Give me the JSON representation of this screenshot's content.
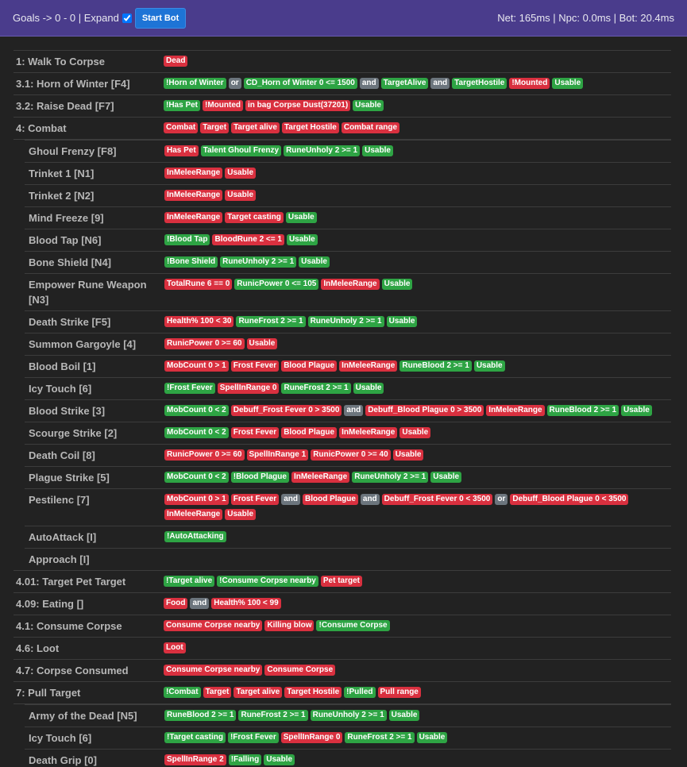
{
  "header": {
    "goals": "Goals -> 0 - 0 | Expand",
    "button": "Start Bot",
    "stats": "Net: 165ms | Npc: 0.0ms | Bot: 20.4ms"
  },
  "rows": [
    {
      "name": "1: Walk To Corpse",
      "badges": [
        [
          "Dead",
          "red"
        ]
      ]
    },
    {
      "name": "3.1: Horn of Winter [F4]",
      "badges": [
        [
          "!Horn of Winter",
          "green"
        ],
        [
          "or",
          "gray"
        ],
        [
          "CD_Horn of Winter 0 <= 1500",
          "green"
        ],
        [
          "and",
          "gray"
        ],
        [
          "TargetAlive",
          "green"
        ],
        [
          "and",
          "gray"
        ],
        [
          "TargetHostile",
          "green"
        ],
        [
          "!Mounted",
          "red"
        ],
        [
          "Usable",
          "green"
        ]
      ]
    },
    {
      "name": "3.2: Raise Dead [F7]",
      "badges": [
        [
          "!Has Pet",
          "green"
        ],
        [
          "!Mounted",
          "red"
        ],
        [
          "in bag Corpse Dust(37201)",
          "red"
        ],
        [
          "Usable",
          "green"
        ]
      ]
    },
    {
      "name": "4: Combat",
      "badges": [
        [
          "Combat",
          "red"
        ],
        [
          "Target",
          "red"
        ],
        [
          "Target alive",
          "red"
        ],
        [
          "Target Hostile",
          "red"
        ],
        [
          "Combat range",
          "red"
        ]
      ],
      "children": [
        {
          "name": "Ghoul Frenzy [F8]",
          "badges": [
            [
              "Has Pet",
              "red"
            ],
            [
              "Talent Ghoul Frenzy",
              "green"
            ],
            [
              "RuneUnholy 2 >= 1",
              "green"
            ],
            [
              "Usable",
              "green"
            ]
          ]
        },
        {
          "name": "Trinket 1 [N1]",
          "badges": [
            [
              "InMeleeRange",
              "red"
            ],
            [
              "Usable",
              "red"
            ]
          ]
        },
        {
          "name": "Trinket 2 [N2]",
          "badges": [
            [
              "InMeleeRange",
              "red"
            ],
            [
              "Usable",
              "red"
            ]
          ]
        },
        {
          "name": "Mind Freeze [9]",
          "badges": [
            [
              "InMeleeRange",
              "red"
            ],
            [
              "Target casting",
              "red"
            ],
            [
              "Usable",
              "green"
            ]
          ]
        },
        {
          "name": "Blood Tap [N6]",
          "badges": [
            [
              "!Blood Tap",
              "green"
            ],
            [
              "BloodRune 2 <= 1",
              "red"
            ],
            [
              "Usable",
              "green"
            ]
          ]
        },
        {
          "name": "Bone Shield [N4]",
          "badges": [
            [
              "!Bone Shield",
              "green"
            ],
            [
              "RuneUnholy 2 >= 1",
              "green"
            ],
            [
              "Usable",
              "green"
            ]
          ]
        },
        {
          "name": "Empower Rune Weapon [N3]",
          "badges": [
            [
              "TotalRune 6 == 0",
              "red"
            ],
            [
              "RunicPower 0 <= 105",
              "green"
            ],
            [
              "InMeleeRange",
              "red"
            ],
            [
              "Usable",
              "green"
            ]
          ]
        },
        {
          "name": "Death Strike [F5]",
          "badges": [
            [
              "Health% 100 < 30",
              "red"
            ],
            [
              "RuneFrost 2 >= 1",
              "green"
            ],
            [
              "RuneUnholy 2 >= 1",
              "green"
            ],
            [
              "Usable",
              "green"
            ]
          ]
        },
        {
          "name": "Summon Gargoyle [4]",
          "badges": [
            [
              "RunicPower 0 >= 60",
              "red"
            ],
            [
              "Usable",
              "red"
            ]
          ]
        },
        {
          "name": "Blood Boil [1]",
          "badges": [
            [
              "MobCount 0 > 1",
              "red"
            ],
            [
              "Frost Fever",
              "red"
            ],
            [
              "Blood Plague",
              "red"
            ],
            [
              "InMeleeRange",
              "red"
            ],
            [
              "RuneBlood 2 >= 1",
              "green"
            ],
            [
              "Usable",
              "green"
            ]
          ]
        },
        {
          "name": "Icy Touch [6]",
          "badges": [
            [
              "!Frost Fever",
              "green"
            ],
            [
              "SpellInRange 0",
              "red"
            ],
            [
              "RuneFrost 2 >= 1",
              "green"
            ],
            [
              "Usable",
              "green"
            ]
          ]
        },
        {
          "name": "Blood Strike [3]",
          "badges": [
            [
              "MobCount 0 < 2",
              "green"
            ],
            [
              "Debuff_Frost Fever 0 > 3500",
              "red"
            ],
            [
              "and",
              "gray"
            ],
            [
              "Debuff_Blood Plague 0 > 3500",
              "red"
            ],
            [
              "InMeleeRange",
              "red"
            ],
            [
              "RuneBlood 2 >= 1",
              "green"
            ],
            [
              "Usable",
              "green"
            ]
          ]
        },
        {
          "name": "Scourge Strike [2]",
          "badges": [
            [
              "MobCount 0 < 2",
              "green"
            ],
            [
              "Frost Fever",
              "red"
            ],
            [
              "Blood Plague",
              "red"
            ],
            [
              "InMeleeRange",
              "red"
            ],
            [
              "Usable",
              "red"
            ]
          ]
        },
        {
          "name": "Death Coil [8]",
          "badges": [
            [
              "RunicPower 0 >= 60",
              "red"
            ],
            [
              "SpellInRange 1",
              "red"
            ],
            [
              "RunicPower 0 >= 40",
              "red"
            ],
            [
              "Usable",
              "red"
            ]
          ]
        },
        {
          "name": "Plague Strike [5]",
          "badges": [
            [
              "MobCount 0 < 2",
              "green"
            ],
            [
              "!Blood Plague",
              "green"
            ],
            [
              "InMeleeRange",
              "red"
            ],
            [
              "RuneUnholy 2 >= 1",
              "green"
            ],
            [
              "Usable",
              "green"
            ]
          ]
        },
        {
          "name": "Pestilenc [7]",
          "badges": [
            [
              "MobCount 0 > 1",
              "red"
            ],
            [
              "Frost Fever",
              "red"
            ],
            [
              "and",
              "gray"
            ],
            [
              "Blood Plague",
              "red"
            ],
            [
              "and",
              "gray"
            ],
            [
              "Debuff_Frost Fever 0 < 3500",
              "red"
            ],
            [
              "or",
              "gray"
            ],
            [
              "Debuff_Blood Plague 0 < 3500",
              "red"
            ],
            [
              "InMeleeRange",
              "red"
            ],
            [
              "Usable",
              "red"
            ]
          ]
        },
        {
          "name": "AutoAttack [I]",
          "badges": [
            [
              "!AutoAttacking",
              "green"
            ]
          ]
        },
        {
          "name": "Approach [I]",
          "badges": []
        }
      ]
    },
    {
      "name": "4.01: Target Pet Target",
      "badges": [
        [
          "!Target alive",
          "green"
        ],
        [
          "!Consume Corpse nearby",
          "green"
        ],
        [
          "Pet target",
          "red"
        ]
      ]
    },
    {
      "name": "4.09: Eating []",
      "badges": [
        [
          "Food",
          "red"
        ],
        [
          "and",
          "gray"
        ],
        [
          "Health% 100 < 99",
          "red"
        ]
      ]
    },
    {
      "name": "4.1: Consume Corpse",
      "badges": [
        [
          "Consume Corpse nearby",
          "red"
        ],
        [
          "Killing blow",
          "red"
        ],
        [
          "!Consume Corpse",
          "green"
        ]
      ]
    },
    {
      "name": "4.6: Loot",
      "badges": [
        [
          "Loot",
          "red"
        ]
      ]
    },
    {
      "name": "4.7: Corpse Consumed",
      "badges": [
        [
          "Consume Corpse nearby",
          "red"
        ],
        [
          "Consume Corpse",
          "red"
        ]
      ]
    },
    {
      "name": "7: Pull Target",
      "badges": [
        [
          "!Combat",
          "green"
        ],
        [
          "Target",
          "red"
        ],
        [
          "Target alive",
          "red"
        ],
        [
          "Target Hostile",
          "red"
        ],
        [
          "!Pulled",
          "green"
        ],
        [
          "Pull range",
          "red"
        ]
      ],
      "children": [
        {
          "name": "Army of the Dead [N5]",
          "badges": [
            [
              "RuneBlood 2 >= 1",
              "green"
            ],
            [
              "RuneFrost 2 >= 1",
              "green"
            ],
            [
              "RuneUnholy 2 >= 1",
              "green"
            ],
            [
              "Usable",
              "green"
            ]
          ]
        },
        {
          "name": "Icy Touch [6]",
          "badges": [
            [
              "!Target casting",
              "green"
            ],
            [
              "!Frost Fever",
              "green"
            ],
            [
              "SpellInRange 0",
              "red"
            ],
            [
              "RuneFrost 2 >= 1",
              "green"
            ],
            [
              "Usable",
              "green"
            ]
          ]
        },
        {
          "name": "Death Grip [0]",
          "badges": [
            [
              "SpellInRange 2",
              "red"
            ],
            [
              "!Falling",
              "green"
            ],
            [
              "Usable",
              "green"
            ]
          ]
        }
      ]
    }
  ]
}
